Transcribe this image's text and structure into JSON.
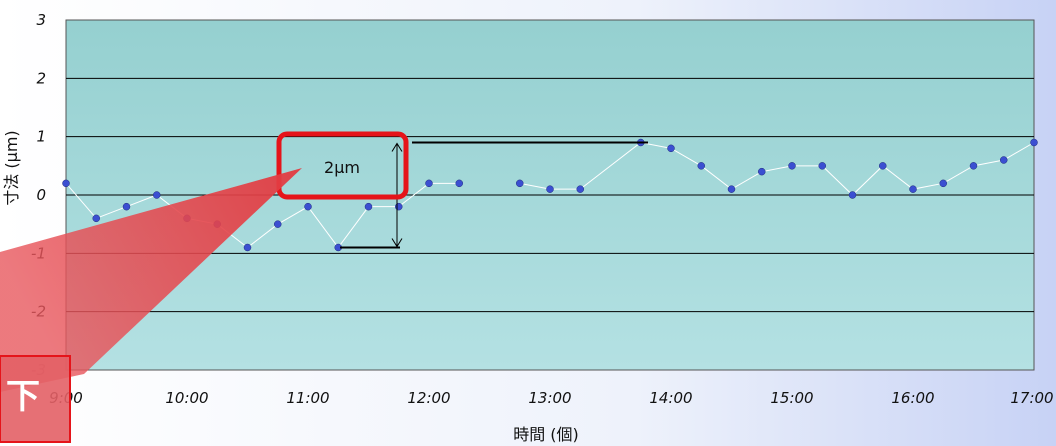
{
  "chart_data": {
    "type": "line",
    "xlabel": "時間 (個)",
    "ylabel": "寸法 (μm)",
    "ylim": [
      -3,
      3
    ],
    "y_ticks": [
      "3",
      "2",
      "1",
      "0",
      "-1",
      "-2",
      "-3"
    ],
    "x_ticks": [
      "9:00",
      "10:00",
      "11:00",
      "12:00",
      "13:00",
      "14:00",
      "15:00",
      "16:00",
      "17:00"
    ],
    "grid": true,
    "x": [
      0,
      0.25,
      0.5,
      0.75,
      1,
      1.25,
      1.5,
      1.75,
      2,
      2.25,
      2.5,
      2.75,
      3,
      3.25,
      3.75,
      4,
      4.25,
      4.75,
      5,
      5.25,
      5.5,
      5.75,
      6,
      6.25,
      6.5,
      6.75,
      7,
      7.25,
      7.5,
      7.75,
      8
    ],
    "series": [
      {
        "values": [
          0.2,
          -0.4,
          -0.2,
          0.0,
          -0.4,
          -0.5,
          -0.9,
          -0.5,
          -0.2,
          -0.9,
          -0.2,
          -0.2,
          0.2,
          0.2,
          0.2,
          0.1,
          0.1,
          0.9,
          0.8,
          0.5,
          0.1,
          0.4,
          0.5,
          0.5,
          0.0,
          0.5,
          0.1,
          0.2,
          0.5,
          0.6,
          0.9
        ],
        "segments": [
          [
            0,
            13
          ],
          [
            14,
            30
          ]
        ]
      }
    ],
    "annotation": {
      "label": "2μm",
      "range": [
        -0.9,
        0.9
      ]
    },
    "callout": {
      "label": "下"
    },
    "colors": {
      "plot_bg": "#a5dadb",
      "marker": "#3b4fd1",
      "line": "#ffffff",
      "highlight": "#e5141a"
    }
  }
}
